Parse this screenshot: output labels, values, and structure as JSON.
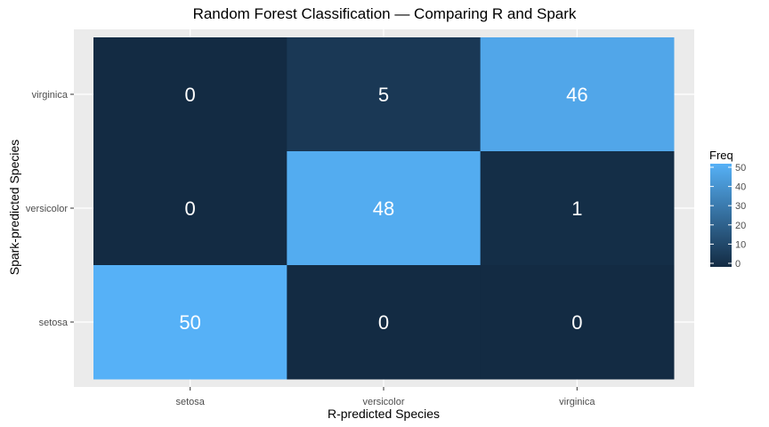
{
  "chart_data": {
    "type": "heatmap",
    "title": "Random Forest Classification — Comparing R and Spark",
    "xlabel": "R-predicted Species",
    "ylabel": "Spark-predicted Species",
    "x_categories": [
      "setosa",
      "versicolor",
      "virginica"
    ],
    "y_categories": [
      "setosa",
      "versicolor",
      "virginica"
    ],
    "cells": [
      {
        "x": "setosa",
        "y": "virginica",
        "value": 0
      },
      {
        "x": "versicolor",
        "y": "virginica",
        "value": 5
      },
      {
        "x": "virginica",
        "y": "virginica",
        "value": 46
      },
      {
        "x": "setosa",
        "y": "versicolor",
        "value": 0
      },
      {
        "x": "versicolor",
        "y": "versicolor",
        "value": 48
      },
      {
        "x": "virginica",
        "y": "versicolor",
        "value": 1
      },
      {
        "x": "setosa",
        "y": "setosa",
        "value": 50
      },
      {
        "x": "versicolor",
        "y": "setosa",
        "value": 0
      },
      {
        "x": "virginica",
        "y": "setosa",
        "value": 0
      }
    ],
    "legend": {
      "title": "Freq",
      "ticks": [
        0,
        10,
        20,
        30,
        40,
        50
      ],
      "min": 0,
      "max": 50,
      "low_color": "#132B43",
      "high_color": "#56B1F7",
      "placement": "right"
    },
    "grid": true,
    "panel_background": "#EBEBEB"
  }
}
